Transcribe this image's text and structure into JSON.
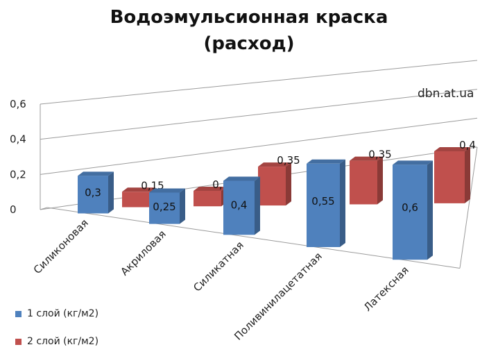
{
  "chart_data": {
    "type": "bar",
    "title": [
      "Водоэмульсионная краска",
      "(расход)"
    ],
    "categories": [
      "Силиконовая",
      "Акриловая",
      "Силикатная",
      "Поливинилацетатная",
      "Латексная"
    ],
    "series": [
      {
        "name": "1 слой (кг/м2)",
        "values": [
          0.3,
          0.25,
          0.4,
          0.55,
          0.6
        ],
        "labels": [
          "0,3",
          "0,25",
          "0,4",
          "0,55",
          "0,6"
        ],
        "color": "#4f81bd"
      },
      {
        "name": "2 слой (кг/м2)",
        "values": [
          0.15,
          0.15,
          0.35,
          0.35,
          0.4
        ],
        "labels": [
          "0,15",
          "0,15",
          "0,35",
          "0,35",
          "0,4"
        ],
        "color": "#c0504d"
      }
    ],
    "y_ticks": [
      "0",
      "0,2",
      "0,4",
      "0,6"
    ],
    "ylim": [
      0,
      0.6
    ],
    "grid": true,
    "legend_position": "bottom-left",
    "watermark": "dbn.at.ua"
  }
}
